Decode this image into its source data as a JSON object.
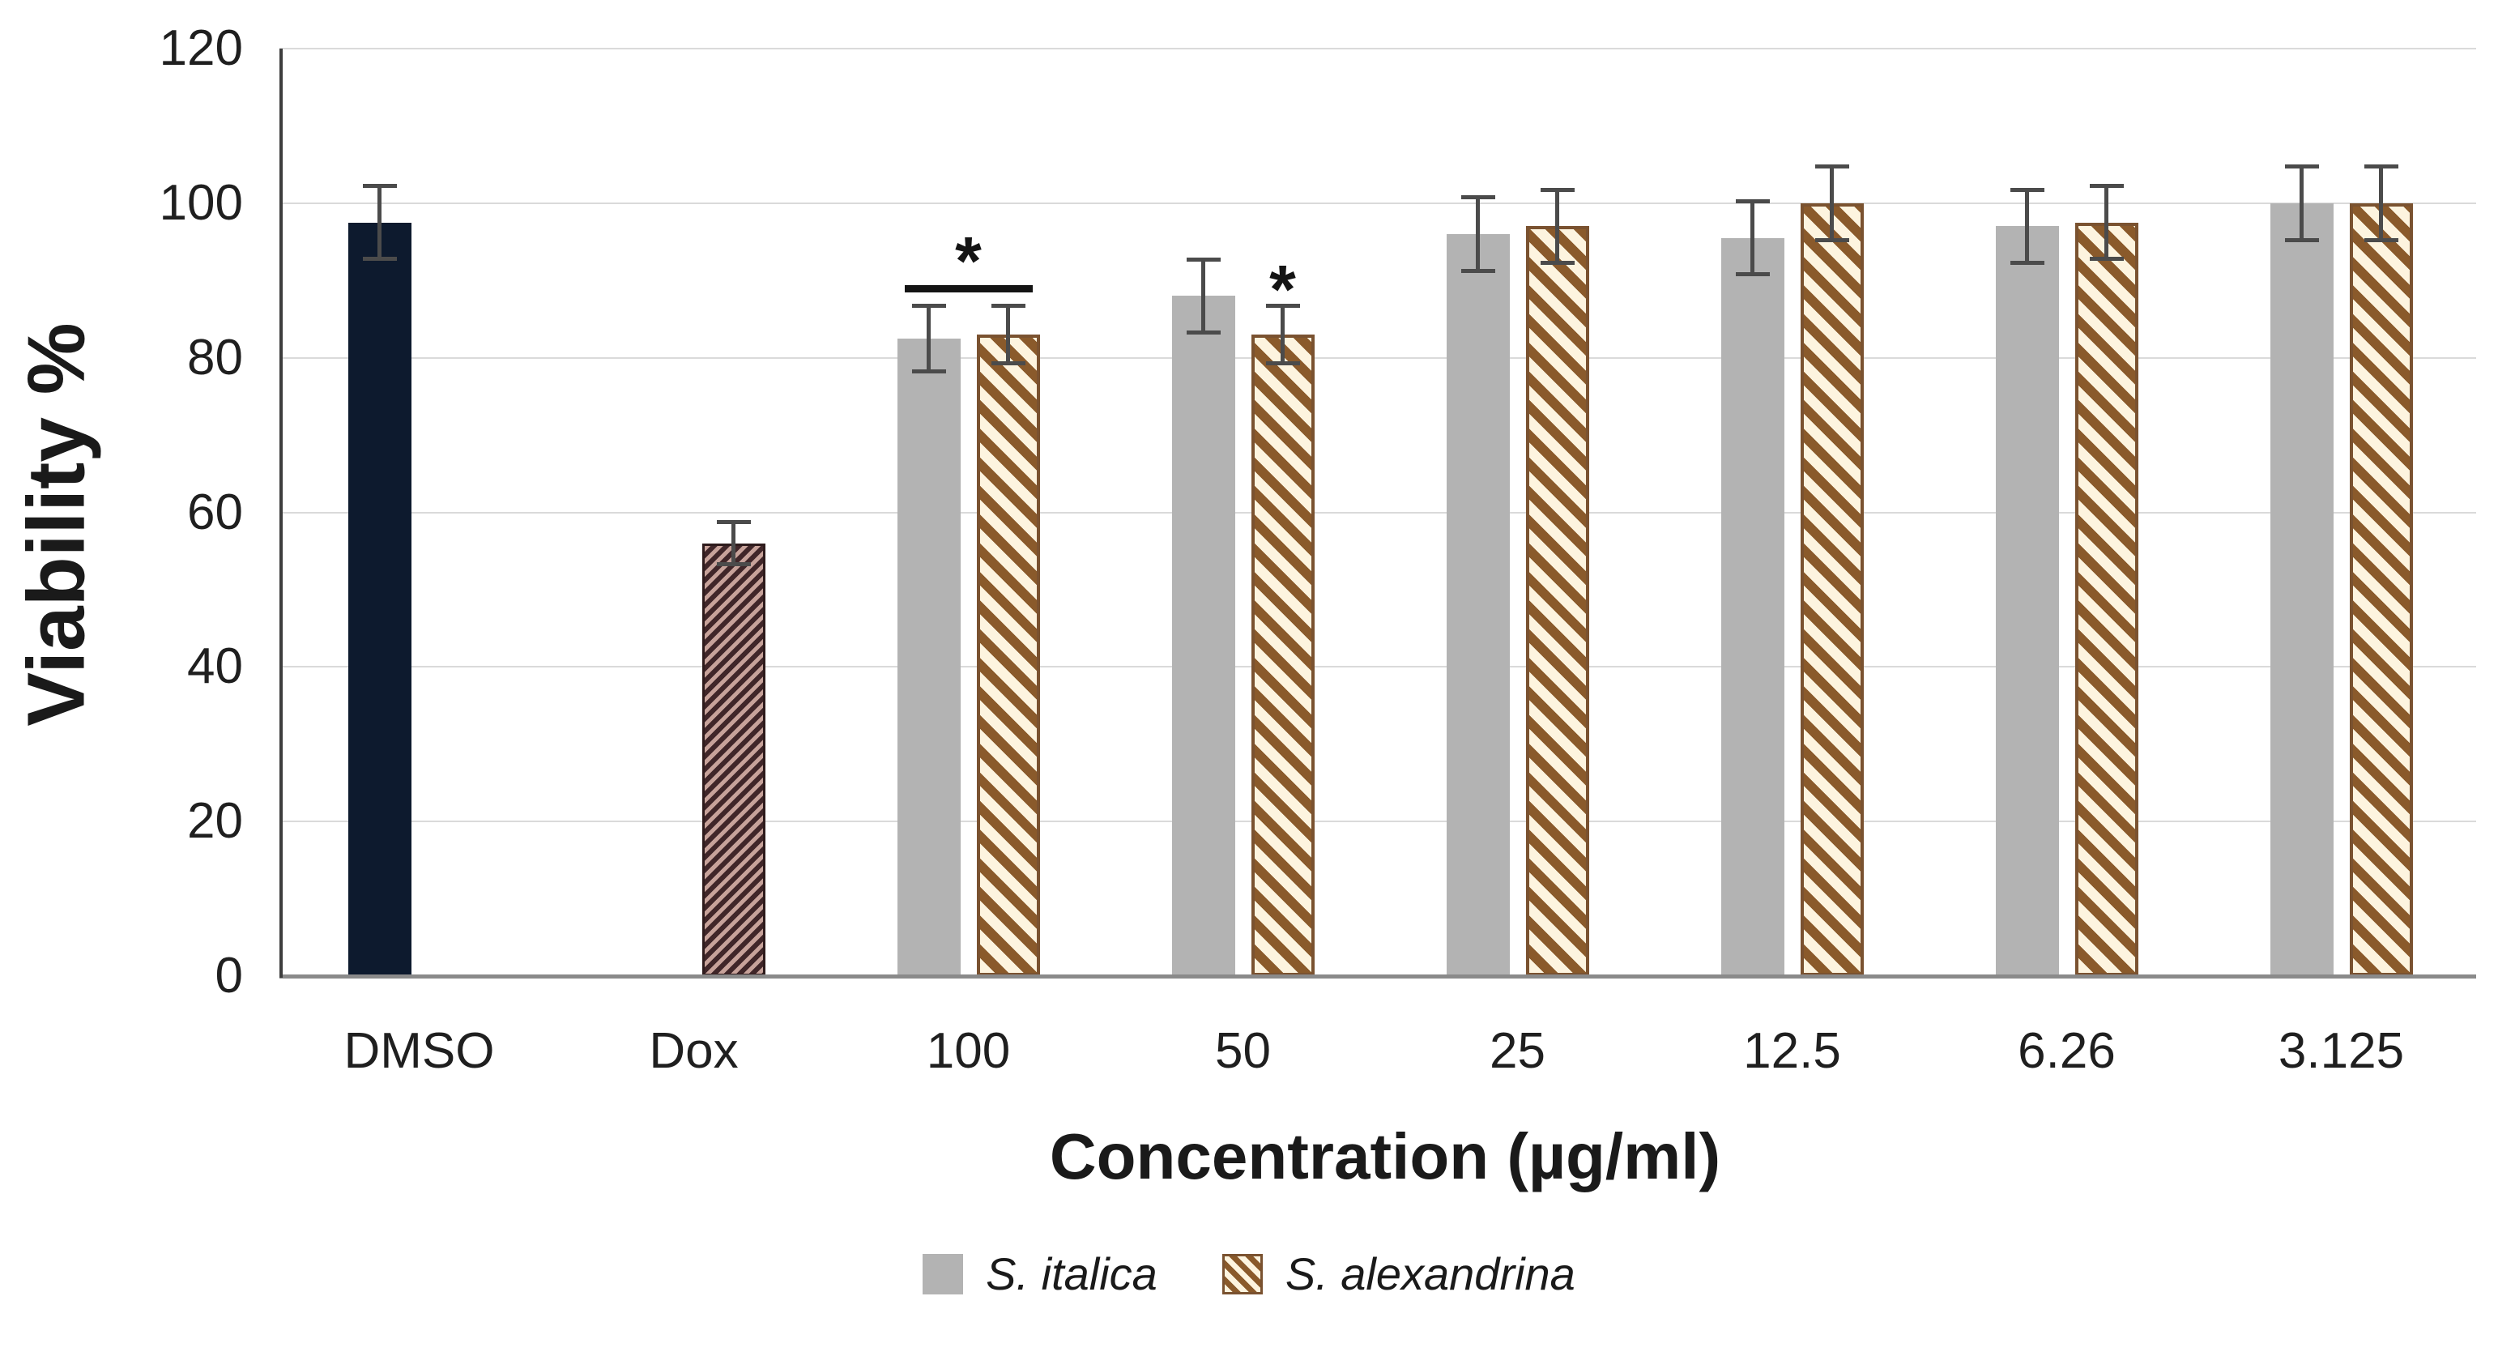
{
  "chart_data": {
    "type": "bar",
    "title": "",
    "xlabel": "Concentration (µg/ml)",
    "ylabel": "Viability %",
    "ylim": [
      0,
      120
    ],
    "yticks": [
      0,
      20,
      40,
      60,
      80,
      100,
      120
    ],
    "grid": true,
    "legend_position": "bottom-center",
    "categories": [
      "DMSO",
      "Dox",
      "100",
      "50",
      "25",
      "12.5",
      "6.26",
      "3.125"
    ],
    "series": [
      {
        "name": "S. italica",
        "style": "solid-gray",
        "color": "#b3b3b3",
        "values": [
          97.5,
          null,
          82.5,
          88,
          96,
          95.5,
          97,
          100
        ],
        "errors": [
          5,
          null,
          4.5,
          5,
          5,
          5,
          5,
          5
        ]
      },
      {
        "name": "S. alexandrina",
        "style": "brown-diagonal-hatch",
        "color": "#8a5a2b",
        "values": [
          null,
          56,
          83,
          83,
          97,
          100,
          97.5,
          100
        ],
        "errors": [
          null,
          3,
          4,
          4,
          5,
          5,
          5,
          5
        ]
      }
    ],
    "special_bars": [
      {
        "category": "DMSO",
        "style": "solid-navy",
        "color": "#0d1a2e"
      },
      {
        "category": "Dox",
        "style": "maroon-fine-hatch",
        "color": "#402629"
      }
    ],
    "annotations": [
      {
        "category": "100",
        "type": "bracket-with-star",
        "label": "*"
      },
      {
        "category": "50",
        "type": "star-over-second-bar",
        "label": "*"
      }
    ]
  },
  "legend": {
    "items": [
      {
        "label": "S. italica",
        "swatch": "gray-solid"
      },
      {
        "label": "S. alexandrina",
        "swatch": "brown-hatch"
      }
    ]
  },
  "colors": {
    "gray_bar": "#b3b3b3",
    "navy_bar": "#0d1a2e",
    "hatch_brown": "#8a5a2b",
    "hatch_cream": "#fdf4df",
    "dox_dark": "#402629",
    "dox_light": "#c7a29a",
    "gridline": "#dadada",
    "x_axis": "#8a8a8a",
    "y_axis": "#3d3d3d",
    "error_bar": "#4b4b4b",
    "text": "#1f1f1f"
  }
}
